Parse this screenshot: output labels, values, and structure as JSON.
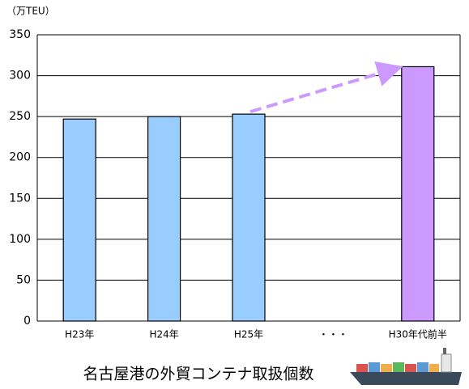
{
  "chart_data": {
    "type": "bar",
    "title": "名古屋港の外貿コンテナ取扱個数",
    "y_axis_label": "（万TEU）",
    "categories": [
      "H23年",
      "H24年",
      "H25年",
      "・・・",
      "H30年代前半"
    ],
    "values": [
      247,
      250,
      253,
      null,
      311
    ],
    "colors": [
      "#99ccff",
      "#99ccff",
      "#99ccff",
      "#99ccff",
      "#cc99ff"
    ],
    "ylim": [
      0,
      350
    ],
    "yticks": [
      0,
      50,
      100,
      150,
      200,
      250,
      300,
      350
    ],
    "grid": true
  }
}
